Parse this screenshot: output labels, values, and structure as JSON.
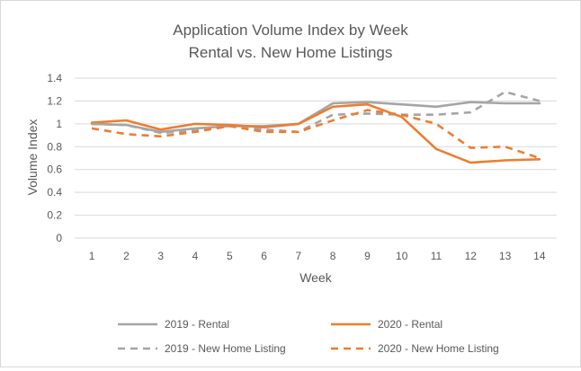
{
  "chart_data": {
    "type": "line",
    "title": "Application Volume Index by Week",
    "subtitle": "Rental vs. New Home Listings",
    "xlabel": "Week",
    "ylabel": "Volume Index",
    "x": [
      1,
      2,
      3,
      4,
      5,
      6,
      7,
      8,
      9,
      10,
      11,
      12,
      13,
      14
    ],
    "y_ticks": [
      "0",
      "0.2",
      "0.4",
      "0.6",
      "0.8",
      "1",
      "1.2",
      "1.4"
    ],
    "ylim": [
      0,
      1.4
    ],
    "grid": true,
    "legend_position": "bottom",
    "series": [
      {
        "name": "2019 - Rental",
        "color": "#a5a5a5",
        "dash": "solid",
        "values": [
          1.0,
          0.99,
          0.93,
          0.96,
          0.98,
          0.98,
          1.0,
          1.18,
          1.19,
          1.17,
          1.15,
          1.19,
          1.18,
          1.18
        ]
      },
      {
        "name": "2020 - Rental",
        "color": "#ed7d31",
        "dash": "solid",
        "values": [
          1.01,
          1.03,
          0.95,
          1.0,
          0.99,
          0.97,
          1.0,
          1.15,
          1.17,
          1.06,
          0.78,
          0.66,
          0.68,
          0.69
        ]
      },
      {
        "name": "2019 - New Home Listing",
        "color": "#a5a5a5",
        "dash": "dashed",
        "values": [
          1.0,
          0.99,
          0.92,
          0.94,
          0.98,
          0.95,
          0.93,
          1.08,
          1.09,
          1.08,
          1.08,
          1.1,
          1.28,
          1.2
        ]
      },
      {
        "name": "2020 - New Home Listing",
        "color": "#ed7d31",
        "dash": "dashed",
        "values": [
          0.96,
          0.91,
          0.89,
          0.93,
          0.98,
          0.93,
          0.93,
          1.03,
          1.12,
          1.08,
          1.0,
          0.79,
          0.8,
          0.7
        ]
      }
    ]
  }
}
